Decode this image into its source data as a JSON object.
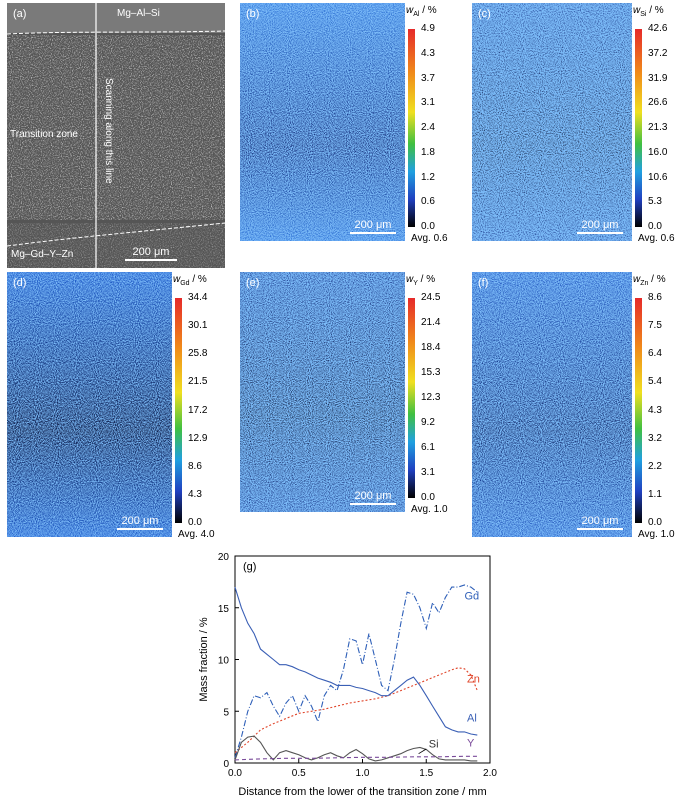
{
  "panel_a": {
    "tag": "(a)",
    "top_alloy": "Mg–Al–Si",
    "zone": "Transition zone",
    "scan_line": "Scanning along this line",
    "bottom_alloy": "Mg–Gd–Y–Zn",
    "scale": "200 μm"
  },
  "maps": [
    {
      "tag": "(b)",
      "symbol": "w",
      "sub": "Al",
      "unit": " / %",
      "ticks": [
        "4.9",
        "4.3",
        "3.7",
        "3.1",
        "2.4",
        "1.8",
        "1.2",
        "0.6",
        "0.0"
      ],
      "avg": "Avg. 0.6",
      "scale": "200 μm"
    },
    {
      "tag": "(c)",
      "symbol": "w",
      "sub": "Si",
      "unit": " / %",
      "ticks": [
        "42.6",
        "37.2",
        "31.9",
        "26.6",
        "21.3",
        "16.0",
        "10.6",
        "5.3",
        "0.0"
      ],
      "avg": "Avg. 0.6",
      "scale": "200 μm"
    },
    {
      "tag": "(d)",
      "symbol": "w",
      "sub": "Gd",
      "unit": " / %",
      "ticks": [
        "34.4",
        "30.1",
        "25.8",
        "21.5",
        "17.2",
        "12.9",
        "8.6",
        "4.3",
        "0.0"
      ],
      "avg": "Avg. 4.0",
      "scale": "200 μm"
    },
    {
      "tag": "(e)",
      "symbol": "w",
      "sub": "Y",
      "unit": " / %",
      "ticks": [
        "24.5",
        "21.4",
        "18.4",
        "15.3",
        "12.3",
        "9.2",
        "6.1",
        "3.1",
        "0.0"
      ],
      "avg": "Avg. 1.0",
      "scale": "200 μm"
    },
    {
      "tag": "(f)",
      "symbol": "w",
      "sub": "Zn",
      "unit": " / %",
      "ticks": [
        "8.6",
        "7.5",
        "6.4",
        "5.4",
        "4.3",
        "3.2",
        "2.2",
        "1.1",
        "0.0"
      ],
      "avg": "Avg. 1.0",
      "scale": "200 μm"
    }
  ],
  "chart_data": {
    "type": "line",
    "panel_tag": "(g)",
    "xlabel": "Distance from the lower of the transition zone / mm",
    "ylabel": "Mass fraction / %",
    "xlim": [
      0,
      2.0
    ],
    "ylim": [
      0,
      20
    ],
    "xticks": [
      "0.0",
      "0.5",
      "1.0",
      "1.5",
      "2.0"
    ],
    "yticks": [
      "0",
      "5",
      "10",
      "15",
      "20"
    ],
    "series": [
      {
        "name": "Gd",
        "color": "#2e5fb8",
        "dash": "6,2,1,2",
        "x": [
          0.0,
          0.05,
          0.1,
          0.15,
          0.2,
          0.25,
          0.3,
          0.35,
          0.4,
          0.45,
          0.5,
          0.55,
          0.6,
          0.65,
          0.7,
          0.75,
          0.8,
          0.85,
          0.9,
          0.95,
          1.0,
          1.05,
          1.1,
          1.15,
          1.2,
          1.25,
          1.3,
          1.35,
          1.4,
          1.45,
          1.5,
          1.55,
          1.6,
          1.65,
          1.7,
          1.75,
          1.8,
          1.85,
          1.9
        ],
        "values": [
          0.5,
          2.5,
          5,
          6.5,
          6.3,
          6.8,
          5.5,
          4.5,
          5.8,
          6.5,
          5.0,
          6.5,
          5.5,
          4.0,
          6.5,
          7.5,
          7.0,
          9.0,
          12.0,
          11.8,
          9.5,
          12.5,
          10.0,
          7.5,
          7.0,
          10.0,
          13.5,
          16.5,
          16.3,
          15.0,
          13.0,
          15.5,
          14.5,
          16.0,
          17.0,
          17.0,
          17.2,
          17.0,
          16.5
        ]
      },
      {
        "name": "Zn",
        "color": "#e0452a",
        "dash": "2,2",
        "x": [
          0.0,
          0.1,
          0.2,
          0.3,
          0.4,
          0.5,
          0.6,
          0.7,
          0.8,
          0.9,
          1.0,
          1.1,
          1.2,
          1.3,
          1.4,
          1.5,
          1.6,
          1.7,
          1.75,
          1.8,
          1.85,
          1.9
        ],
        "values": [
          1.0,
          2.0,
          3.2,
          3.8,
          4.3,
          4.8,
          5.0,
          5.2,
          5.5,
          5.8,
          6.0,
          6.2,
          6.5,
          7.0,
          7.5,
          8.0,
          8.5,
          9.0,
          9.2,
          9.1,
          8.5,
          7.0
        ]
      },
      {
        "name": "Al",
        "color": "#3a5fb5",
        "dash": "",
        "x": [
          0.0,
          0.05,
          0.1,
          0.15,
          0.2,
          0.25,
          0.3,
          0.35,
          0.4,
          0.45,
          0.5,
          0.55,
          0.6,
          0.65,
          0.7,
          0.75,
          0.8,
          0.85,
          0.9,
          0.95,
          1.0,
          1.05,
          1.1,
          1.15,
          1.2,
          1.25,
          1.3,
          1.35,
          1.4,
          1.45,
          1.5,
          1.55,
          1.6,
          1.65,
          1.7,
          1.75,
          1.8,
          1.85,
          1.9
        ],
        "values": [
          17.0,
          15.0,
          13.5,
          12.5,
          11.0,
          10.5,
          10.0,
          9.5,
          9.5,
          9.3,
          9.0,
          8.8,
          8.5,
          8.2,
          8.0,
          7.8,
          7.5,
          7.5,
          7.5,
          7.3,
          7.2,
          7.0,
          6.8,
          6.5,
          6.5,
          7.0,
          7.5,
          8.0,
          8.3,
          7.5,
          6.5,
          5.5,
          4.5,
          3.5,
          3.2,
          3.0,
          3.0,
          2.8,
          2.7
        ]
      },
      {
        "name": "Si",
        "color": "#555555",
        "dash": "",
        "x": [
          0.0,
          0.05,
          0.1,
          0.15,
          0.2,
          0.25,
          0.3,
          0.35,
          0.4,
          0.45,
          0.5,
          0.55,
          0.6,
          0.65,
          0.7,
          0.75,
          0.8,
          0.85,
          0.9,
          0.95,
          1.0,
          1.05,
          1.1,
          1.15,
          1.2,
          1.25,
          1.3,
          1.35,
          1.4,
          1.45,
          1.5,
          1.55,
          1.6,
          1.65,
          1.7,
          1.75,
          1.8,
          1.85,
          1.9
        ],
        "values": [
          0.3,
          2.0,
          2.5,
          2.6,
          2.0,
          1.0,
          0.3,
          1.0,
          1.2,
          1.0,
          0.8,
          0.5,
          0.3,
          0.5,
          0.8,
          1.0,
          0.7,
          0.5,
          1.0,
          1.3,
          0.9,
          0.4,
          0.2,
          0.3,
          0.5,
          0.7,
          0.9,
          1.2,
          1.4,
          1.5,
          1.3,
          0.8,
          0.4,
          0.3,
          0.3,
          0.3,
          0.3,
          0.2,
          0.2
        ]
      },
      {
        "name": "Y",
        "color": "#7a4b9a",
        "dash": "4,3",
        "x": [
          0.0,
          0.2,
          0.4,
          0.6,
          0.8,
          1.0,
          1.2,
          1.4,
          1.6,
          1.8,
          1.9
        ],
        "values": [
          0.3,
          0.4,
          0.45,
          0.45,
          0.5,
          0.55,
          0.55,
          0.6,
          0.6,
          0.65,
          0.65
        ]
      }
    ],
    "labels": [
      {
        "text": "Gd",
        "x": 1.8,
        "y": 15.8,
        "color": "#2e5fb8"
      },
      {
        "text": "Zn",
        "x": 1.82,
        "y": 7.8,
        "color": "#e0452a"
      },
      {
        "text": "Al",
        "x": 1.82,
        "y": 4.0,
        "color": "#3a5fb5"
      },
      {
        "text": "Si",
        "x": 1.52,
        "y": 1.5,
        "color": "#333333"
      },
      {
        "text": "Y",
        "x": 1.82,
        "y": 1.6,
        "color": "#7a4b9a"
      }
    ]
  }
}
